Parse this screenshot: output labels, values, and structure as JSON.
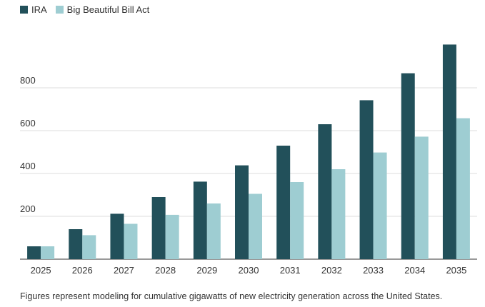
{
  "legend": {
    "items": [
      {
        "label": "IRA",
        "color": "#22505a"
      },
      {
        "label": "Big Beautiful Bill Act",
        "color": "#9ecdd2"
      }
    ]
  },
  "caption": "Figures represent modeling for cumulative gigawatts of new electricity generation across the United States.",
  "chart_data": {
    "type": "bar",
    "title": "",
    "xlabel": "",
    "ylabel": "",
    "categories": [
      "2025",
      "2026",
      "2027",
      "2028",
      "2029",
      "2030",
      "2031",
      "2032",
      "2033",
      "2034",
      "2035"
    ],
    "series": [
      {
        "name": "IRA",
        "color": "#22505a",
        "values": [
          60,
          140,
          212,
          290,
          362,
          438,
          530,
          630,
          742,
          868,
          1002
        ]
      },
      {
        "name": "Big Beautiful Bill Act",
        "color": "#9ecdd2",
        "values": [
          60,
          112,
          165,
          207,
          260,
          305,
          360,
          420,
          498,
          572,
          658
        ]
      }
    ],
    "yticks": [
      200,
      400,
      600,
      800
    ],
    "ylim": [
      0,
      1000
    ],
    "grid": true,
    "legend": "top-left"
  }
}
